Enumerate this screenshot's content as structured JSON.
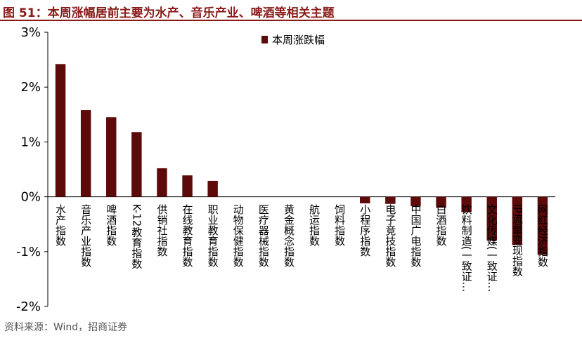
{
  "title": "图 51：本周涨幅居前主要为水产、音乐产业、啤酒等相关主题",
  "source": "资料来源：Wind，招商证券",
  "chart_data": {
    "type": "bar",
    "categories": [
      "水产指数",
      "音乐产业指数",
      "啤酒指数",
      "K-12教育指数",
      "供销社指数",
      "在线教育指数",
      "职业教育指数",
      "动物保健指数",
      "医疗器械指数",
      "黄金概念指数",
      "航运指数",
      "饲料指数",
      "小程序指数",
      "电子竞技指数",
      "中国广电指数",
      "白酒指数",
      "饮料制造(一致证…",
      "文化传媒(一致证…",
      "IP流量变现指数",
      "网红经济指数"
    ],
    "series": [
      {
        "name": "本周涨跌幅",
        "color": "#5c0a0a",
        "values": [
          2.42,
          1.58,
          1.45,
          1.18,
          0.52,
          0.39,
          0.29,
          0.0,
          0.0,
          0.0,
          0.0,
          0.0,
          -0.12,
          -0.13,
          -0.17,
          -0.2,
          -0.28,
          -0.8,
          -0.88,
          -1.06
        ]
      }
    ],
    "ylim": [
      -2,
      3
    ],
    "yticks": [
      -2,
      -1,
      0,
      1,
      2,
      3
    ],
    "ytick_labels": [
      "-2%",
      "-1%",
      "0%",
      "1%",
      "2%",
      "3%"
    ],
    "legend": "top-center",
    "grid": false
  }
}
